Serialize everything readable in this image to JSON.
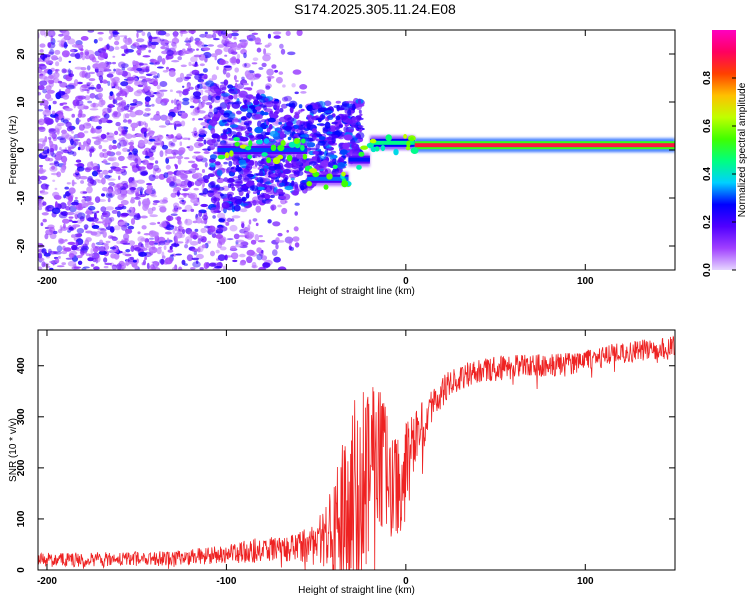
{
  "title": "S174.2025.305.11.24.E08",
  "colors": {
    "snr_line": "#ee2222",
    "axis": "#000000",
    "background": "#ffffff",
    "spectrogram_main": "#7b00ff"
  },
  "chart_data": [
    {
      "type": "heatmap",
      "name": "spectrogram",
      "xlabel": "Height of straight line (km)",
      "ylabel": "Frequency (Hz)",
      "xlim": [
        -205,
        150
      ],
      "ylim": [
        -25,
        25
      ],
      "xticks": [
        -200,
        -100,
        0,
        100
      ],
      "xtick_labels": [
        "-200",
        "-100",
        "0",
        "100"
      ],
      "yticks": [
        -20,
        -10,
        0,
        10,
        20
      ],
      "ytick_labels": [
        "-20",
        "-10",
        "0",
        "10",
        "20"
      ],
      "colorbar": {
        "label": "Normalized spectral amplitude",
        "range": [
          0,
          1
        ],
        "ticks": [
          "0.0",
          "0.2",
          "0.4",
          "0.6",
          "0.8"
        ],
        "tick_values": [
          0,
          0.2,
          0.4,
          0.6,
          0.8
        ],
        "stops": [
          "#e6d6ff",
          "#a040ff",
          "#5000ff",
          "#0000ff",
          "#00d0ff",
          "#00ff80",
          "#40ff00",
          "#c0ff00",
          "#ffc000",
          "#ff4000",
          "#ff0060",
          "#ff00c0"
        ]
      },
      "carrier_frequency_hz": 1,
      "noise_floor_extent": [
        -205,
        -55
      ],
      "carrier_segments": [
        {
          "x": [
            -105,
            -55
          ],
          "freq": 0,
          "amplitude": 0.3
        },
        {
          "x": [
            -55,
            -32
          ],
          "freq": -6,
          "amplitude": 0.32
        },
        {
          "x": [
            -32,
            -20
          ],
          "freq": -2,
          "amplitude": 0.28
        },
        {
          "x": [
            -20,
            5
          ],
          "freq": 1.5,
          "amplitude": 0.45
        },
        {
          "x": [
            5,
            150
          ],
          "freq": 1,
          "amplitude": 0.88
        }
      ]
    },
    {
      "type": "line",
      "name": "snr",
      "xlabel": "Height of straight line (km)",
      "ylabel": "SNR (10 * v/v)",
      "xlim": [
        -205,
        150
      ],
      "ylim": [
        0,
        470
      ],
      "xticks": [
        -200,
        -100,
        0,
        100
      ],
      "xtick_labels": [
        "-200",
        "-100",
        "0",
        "100"
      ],
      "yticks": [
        0,
        100,
        200,
        300,
        400
      ],
      "ytick_labels": [
        "0",
        "100",
        "200",
        "300",
        "400"
      ],
      "series": [
        {
          "name": "SNR",
          "x": [
            -205,
            -190,
            -170,
            -150,
            -130,
            -110,
            -100,
            -90,
            -80,
            -70,
            -60,
            -50,
            -45,
            -40,
            -35,
            -30,
            -25,
            -20,
            -15,
            -10,
            -5,
            0,
            5,
            10,
            15,
            20,
            25,
            30,
            40,
            50,
            60,
            70,
            80,
            90,
            100,
            110,
            120,
            130,
            140,
            150
          ],
          "values": [
            20,
            20,
            21,
            22,
            23,
            28,
            33,
            36,
            40,
            42,
            45,
            55,
            65,
            85,
            110,
            140,
            170,
            200,
            215,
            190,
            165,
            195,
            240,
            285,
            325,
            350,
            365,
            378,
            390,
            395,
            398,
            400,
            400,
            403,
            410,
            418,
            425,
            430,
            432,
            437
          ],
          "noise": [
            10,
            10,
            10,
            10,
            10,
            12,
            14,
            16,
            18,
            18,
            20,
            30,
            45,
            70,
            100,
            130,
            140,
            120,
            100,
            90,
            80,
            70,
            50,
            35,
            25,
            22,
            20,
            18,
            18,
            18,
            17,
            16,
            16,
            16,
            15,
            15,
            15,
            15,
            15,
            15
          ]
        }
      ]
    }
  ]
}
